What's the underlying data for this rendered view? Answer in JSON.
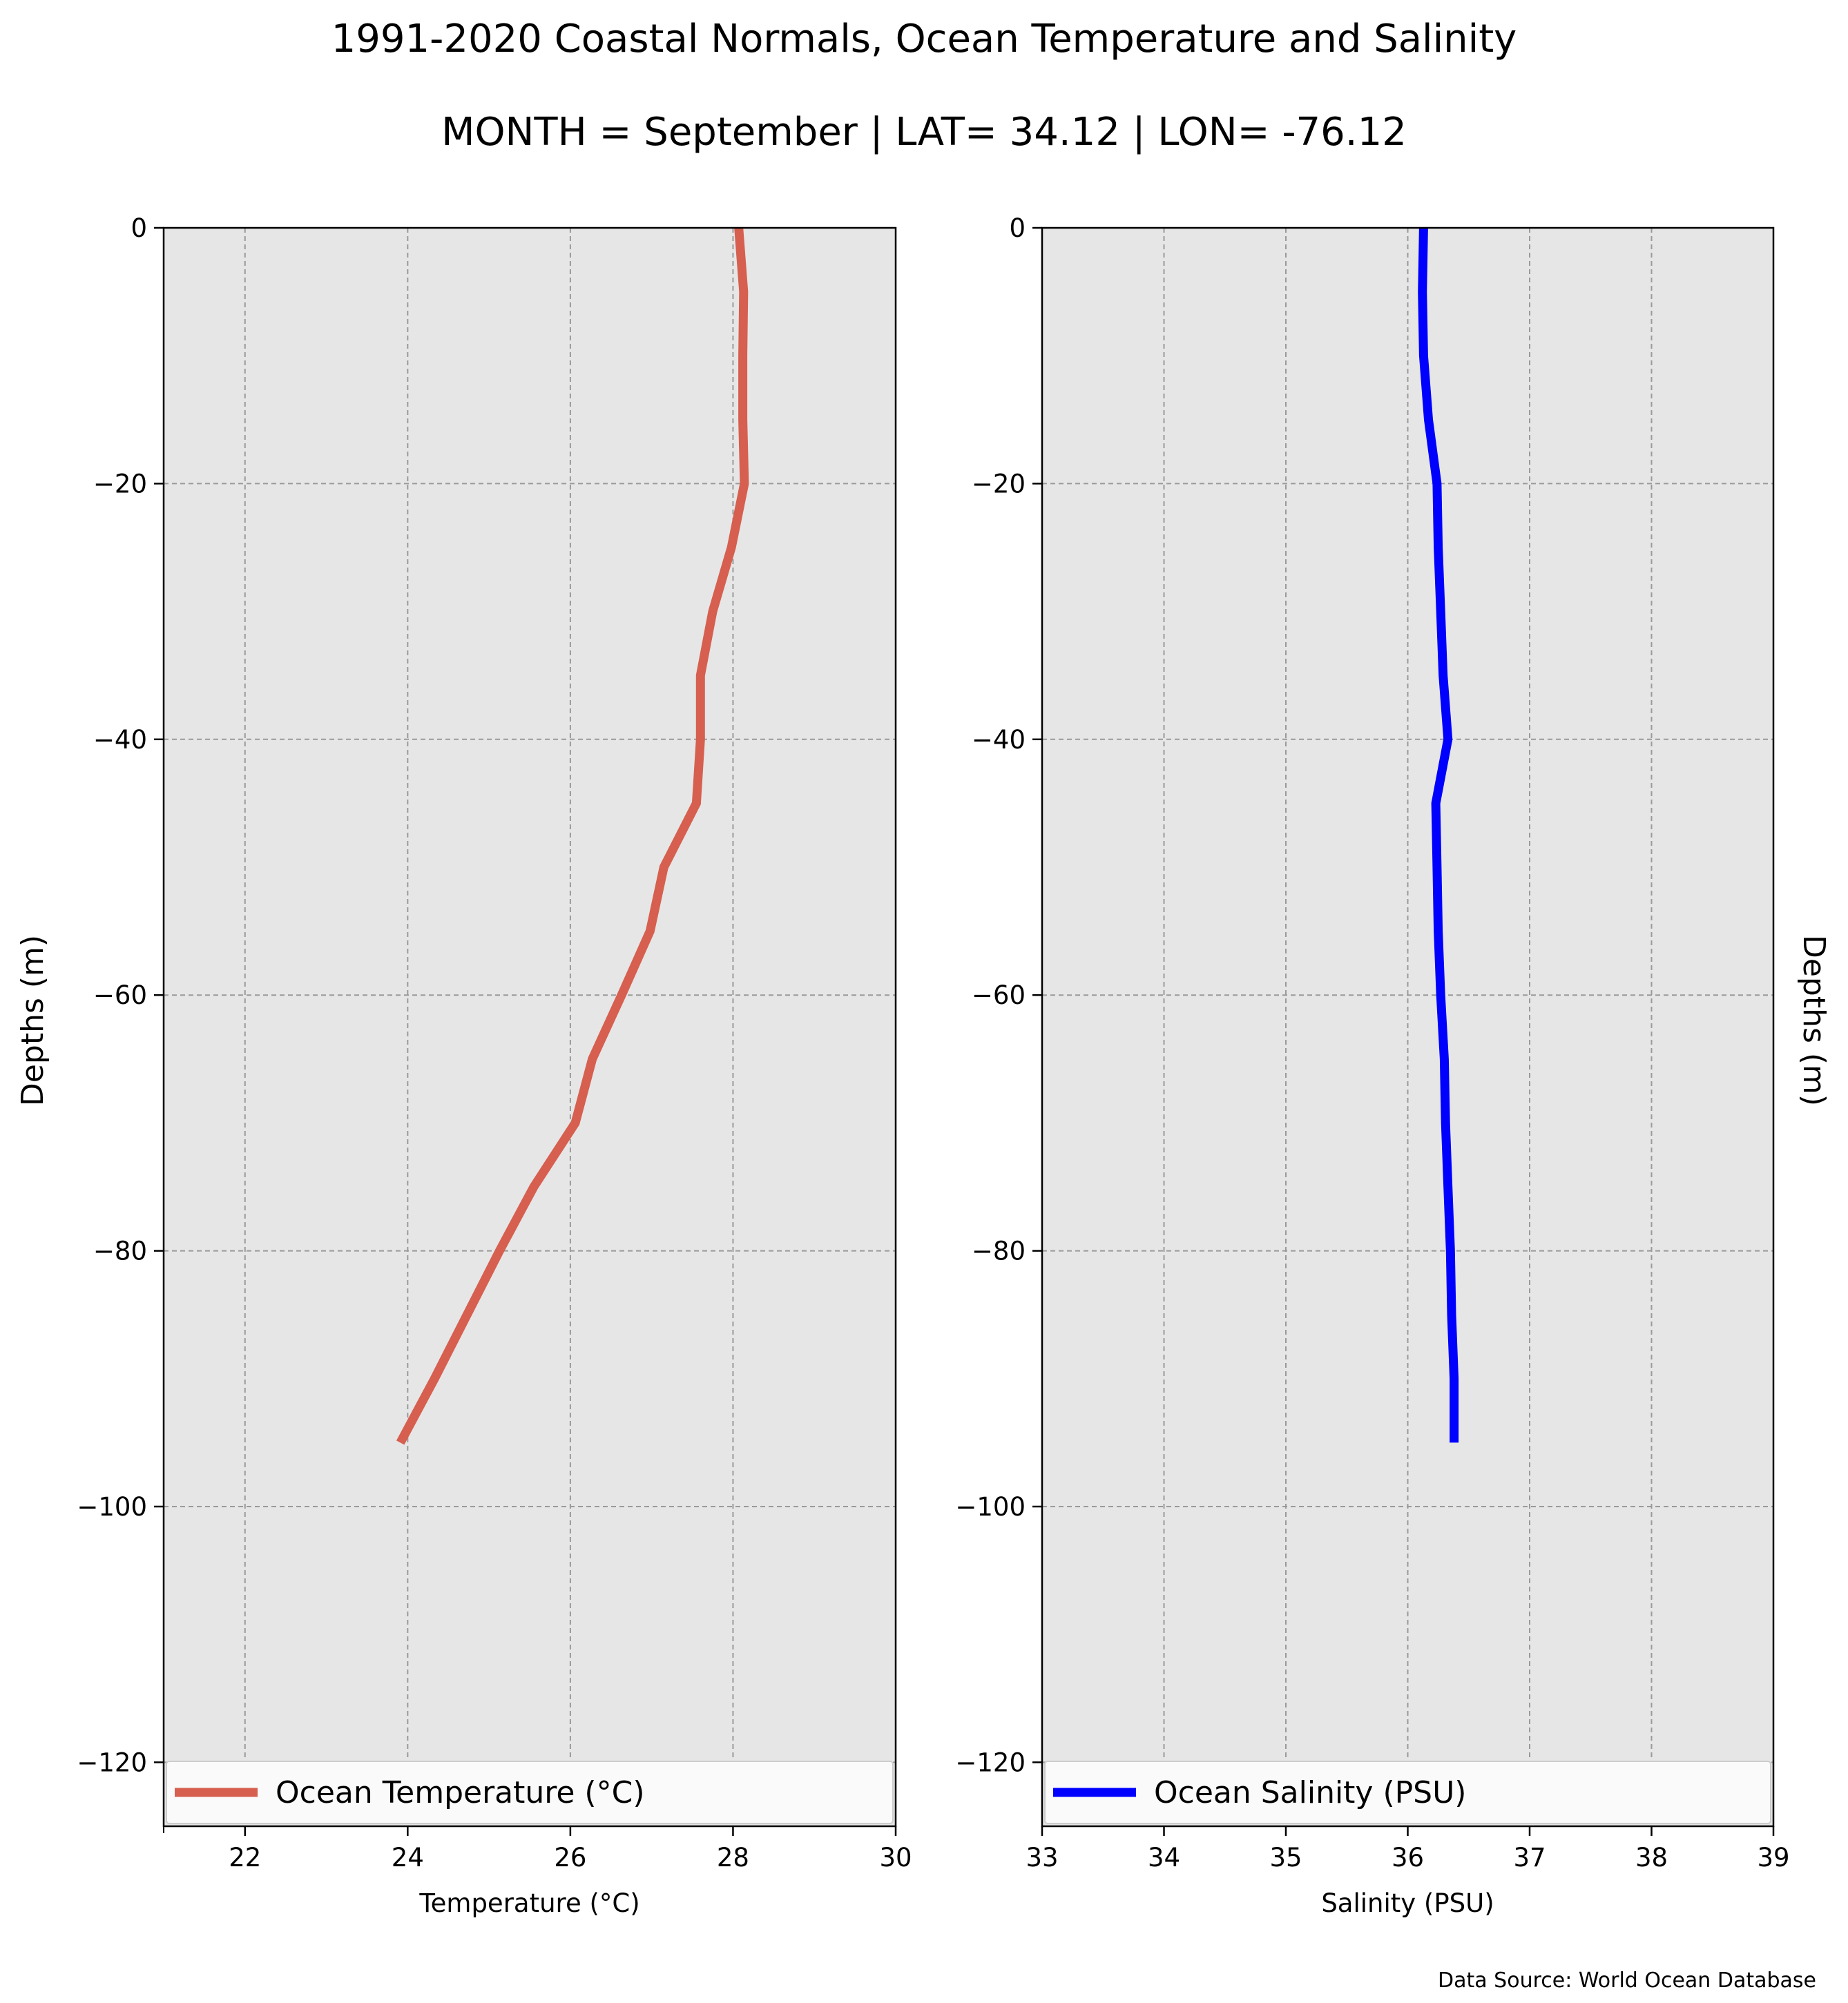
{
  "title": "1991-2020 Coastal Normals, Ocean Temperature and Salinity",
  "subtitle": "MONTH = September | LAT= 34.12 | LON= -76.12",
  "source_note": "Data Source: World Ocean Database",
  "colors": {
    "plot_bg": "#e6e6e6",
    "temperature_line": "#d65f4f",
    "salinity_line": "#0000ff",
    "grid": "#9a9a9a"
  },
  "chart_data": [
    {
      "type": "line",
      "xlabel": "Temperature ($^\\circ$C)",
      "ylabel": "Depths (m)",
      "xlim": [
        21,
        30
      ],
      "ylim": [
        -125,
        0
      ],
      "xticks": [
        22,
        24,
        26,
        28,
        30
      ],
      "yticks": [
        0,
        -20,
        -40,
        -60,
        -80,
        -100,
        -120
      ],
      "grid": true,
      "legend_position": "bottom",
      "series": [
        {
          "name": "Ocean Temperature ($^\\circ$C)",
          "color": "#d65f4f",
          "x": [
            28.07,
            28.13,
            28.12,
            28.12,
            28.14,
            27.98,
            27.75,
            27.6,
            27.6,
            27.55,
            27.15,
            26.98,
            26.63,
            26.27,
            26.06,
            25.55,
            25.13,
            24.73,
            24.33,
            23.91
          ],
          "y": [
            0,
            -5,
            -10,
            -15,
            -20,
            -25,
            -30,
            -35,
            -40,
            -45,
            -50,
            -55,
            -60,
            -65,
            -70,
            -75,
            -80,
            -85,
            -90,
            -95
          ]
        }
      ]
    },
    {
      "type": "line",
      "xlabel": "Salinity (PSU)",
      "ylabel": "Depths (m)",
      "xlim": [
        33,
        39
      ],
      "ylim": [
        -125,
        0
      ],
      "xticks": [
        33,
        34,
        35,
        36,
        37,
        38,
        39
      ],
      "yticks": [
        0,
        -20,
        -40,
        -60,
        -80,
        -100,
        -120
      ],
      "grid": true,
      "legend_position": "bottom",
      "series": [
        {
          "name": "Ocean Salinity (PSU)",
          "color": "#0000ff",
          "x": [
            36.13,
            36.12,
            36.13,
            36.17,
            36.24,
            36.25,
            36.27,
            36.29,
            36.33,
            36.23,
            36.24,
            36.25,
            36.27,
            36.3,
            36.31,
            36.33,
            36.35,
            36.36,
            36.38,
            36.38
          ],
          "y": [
            0,
            -5,
            -10,
            -15,
            -20,
            -25,
            -30,
            -35,
            -40,
            -45,
            -50,
            -55,
            -60,
            -65,
            -70,
            -75,
            -80,
            -85,
            -90,
            -95
          ]
        }
      ]
    }
  ]
}
